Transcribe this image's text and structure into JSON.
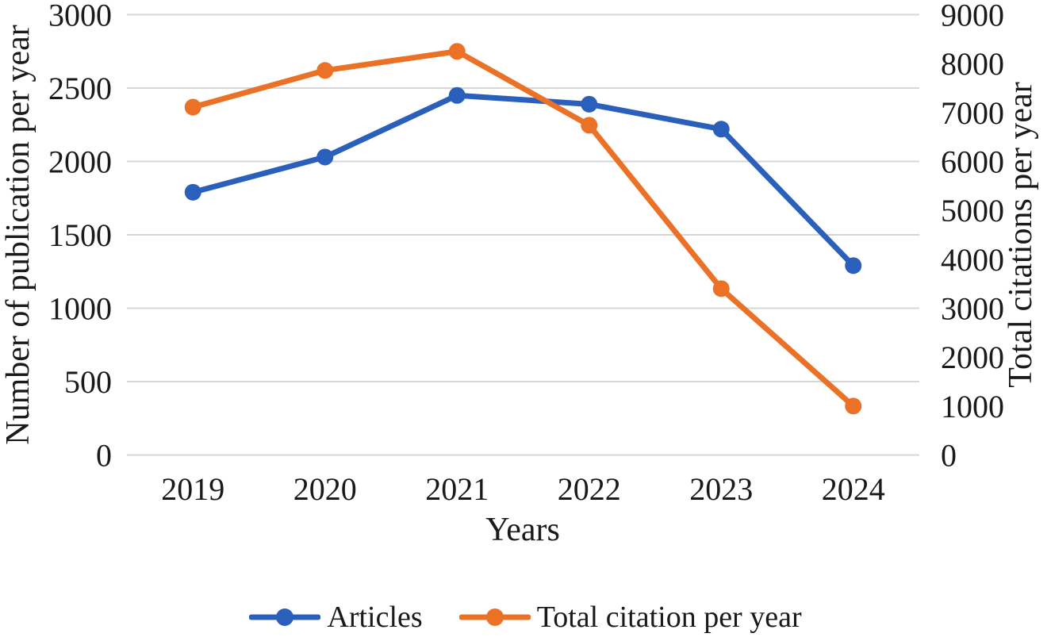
{
  "figure": {
    "background": "#ffffff",
    "text_color": "#1a1a1a"
  },
  "chart_data": {
    "type": "line",
    "title": "",
    "categories": [
      "2019",
      "2020",
      "2021",
      "2022",
      "2023",
      "2024"
    ],
    "series": [
      {
        "name": "Articles",
        "yaxis": "left",
        "color": "#2B5FBC",
        "marker": "circle",
        "values": [
          1790,
          2030,
          2450,
          2390,
          2220,
          1290
        ]
      },
      {
        "name": "Total citation per year",
        "yaxis": "right",
        "color": "#EA7125",
        "marker": "circle",
        "values": [
          7110,
          7860,
          8250,
          6740,
          3400,
          1000
        ]
      }
    ],
    "xlabel": "Years",
    "ylabel_left": "Number of publication per year",
    "ylabel_right": "Total citations per year",
    "y_left": {
      "min": 0,
      "max": 3000,
      "step": 500
    },
    "y_right": {
      "min": 0,
      "max": 9000,
      "step": 1000
    },
    "grid": true,
    "gridline_color": "#D6D6D6",
    "legend_position": "bottom"
  }
}
